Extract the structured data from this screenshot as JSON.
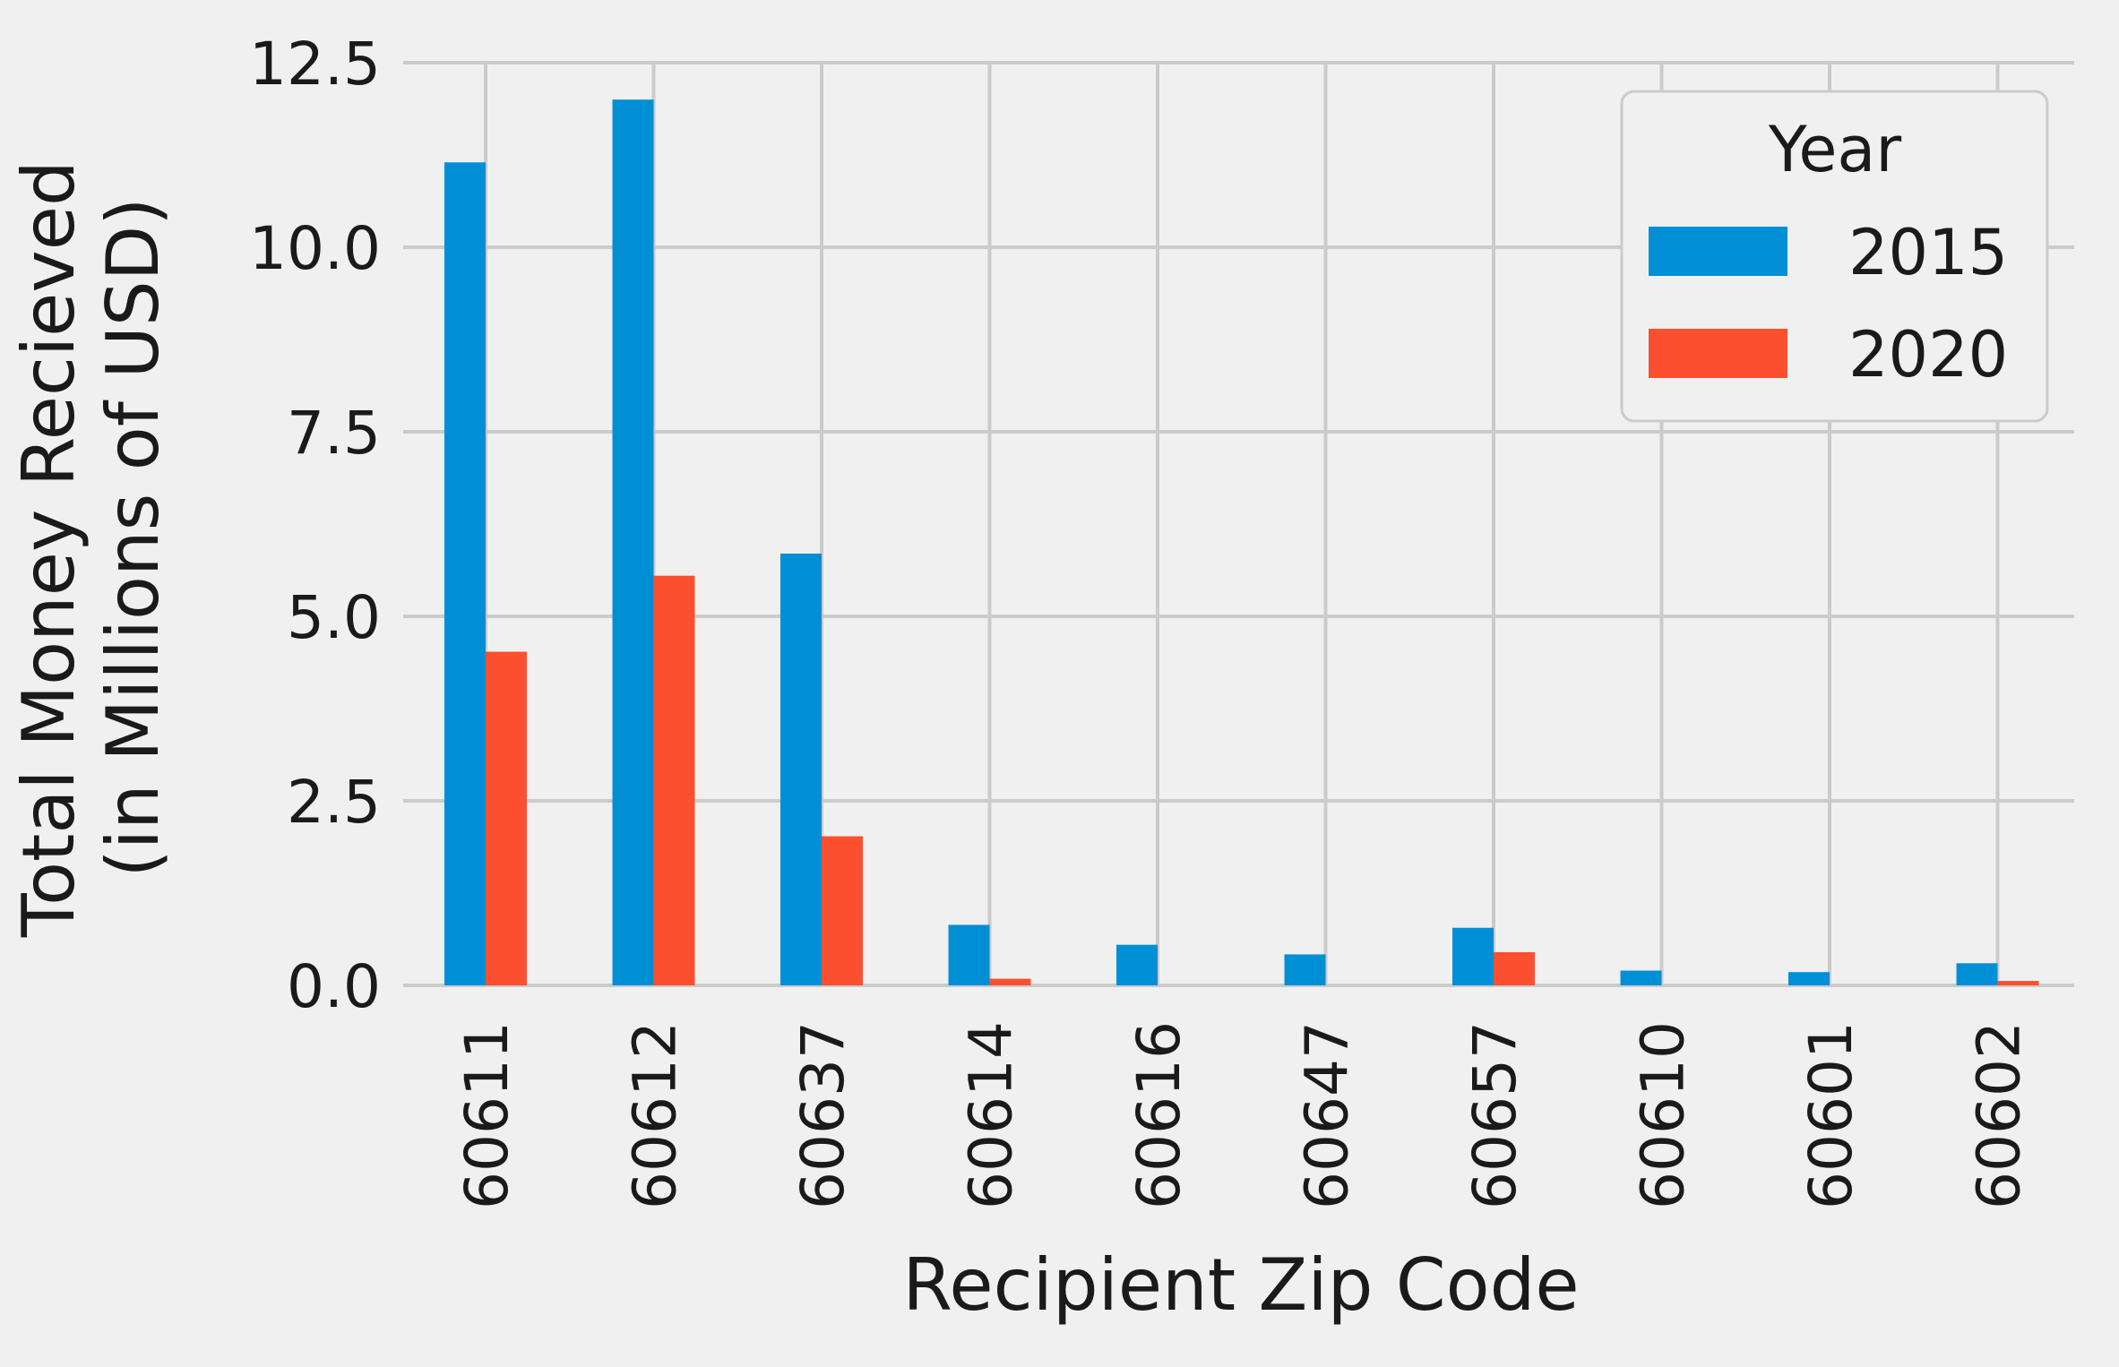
{
  "chart_data": {
    "type": "bar",
    "xlabel": "Recipient Zip Code",
    "ylabel_lines": [
      "Total Money Recieved",
      "(in Millions of USD)"
    ],
    "categories": [
      "60611",
      "60612",
      "60637",
      "60614",
      "60616",
      "60647",
      "60657",
      "60610",
      "60601",
      "60602"
    ],
    "series": [
      {
        "name": "2015",
        "color": "#008fd5",
        "values": [
          11.15,
          12.0,
          5.85,
          0.82,
          0.55,
          0.42,
          0.78,
          0.2,
          0.18,
          0.3
        ]
      },
      {
        "name": "2020",
        "color": "#fc4f30",
        "values": [
          4.52,
          5.55,
          2.02,
          0.09,
          0.0,
          0.0,
          0.45,
          0.0,
          0.0,
          0.06
        ]
      }
    ],
    "ylim": [
      0,
      12.5
    ],
    "yticks": [
      "0.0",
      "2.5",
      "5.0",
      "7.5",
      "10.0",
      "12.5"
    ],
    "ytick_values": [
      0,
      2.5,
      5,
      7.5,
      10,
      12.5
    ],
    "legend": {
      "title": "Year",
      "position": "top-right"
    },
    "grid": true
  }
}
